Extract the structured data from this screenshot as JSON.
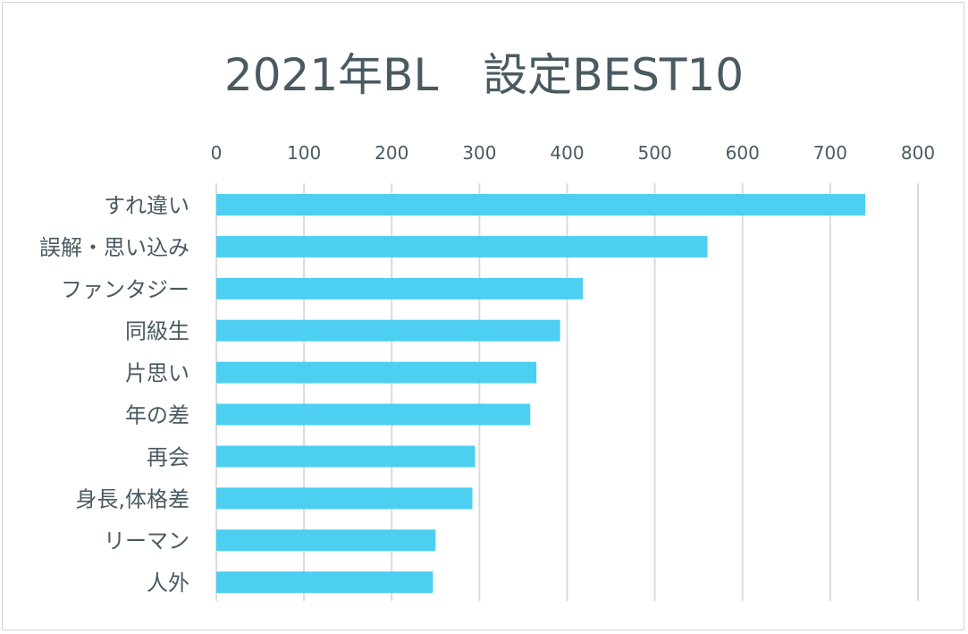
{
  "chart_data": {
    "type": "bar",
    "orientation": "horizontal",
    "title": "2021年BL　設定BEST10",
    "categories": [
      "すれ違い",
      "誤解・思い込み",
      "ファンタジー",
      "同級生",
      "片思い",
      "年の差",
      "再会",
      "身長,体格差",
      "リーマン",
      "人外"
    ],
    "values": [
      740,
      560,
      418,
      392,
      365,
      358,
      295,
      292,
      250,
      247
    ],
    "xlim": [
      0,
      800
    ],
    "ticks": [
      0,
      100,
      200,
      300,
      400,
      500,
      600,
      700,
      800
    ],
    "tick_labels": [
      "0",
      "100",
      "200",
      "300",
      "400",
      "500",
      "600",
      "700",
      "800"
    ],
    "axis_position": "top",
    "grid": true,
    "legend": "none",
    "bar_color": "#4dcff2",
    "grid_color": "#d9dcde",
    "text_color": "#4a5a61"
  }
}
